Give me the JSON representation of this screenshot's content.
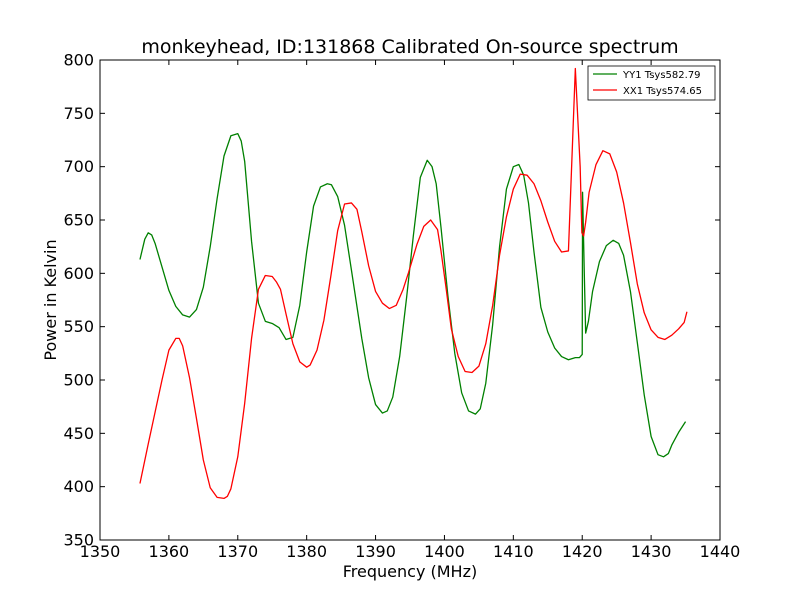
{
  "chart_data": {
    "type": "line",
    "title": "monkeyhead, ID:131868 Calibrated On-source spectrum",
    "xlabel": "Frequency (MHz)",
    "ylabel": "Power in Kelvin",
    "xlim": [
      1350,
      1440
    ],
    "ylim": [
      350,
      800
    ],
    "xticks": [
      1350,
      1360,
      1370,
      1380,
      1390,
      1400,
      1410,
      1420,
      1430,
      1440
    ],
    "yticks": [
      350,
      400,
      450,
      500,
      550,
      600,
      650,
      700,
      750,
      800
    ],
    "grid": false,
    "legend_position": "top-right",
    "series": [
      {
        "name": "YY1 Tsys582.79",
        "color": "#008000",
        "x": [
          1355.8,
          1356.5,
          1357.0,
          1357.5,
          1358.0,
          1359.0,
          1360.0,
          1361.0,
          1362.0,
          1363.0,
          1364.0,
          1365.0,
          1366.0,
          1367.0,
          1368.0,
          1369.0,
          1370.0,
          1370.5,
          1371.0,
          1372.0,
          1373.0,
          1374.0,
          1375.0,
          1376.0,
          1377.0,
          1378.0,
          1379.0,
          1380.0,
          1381.0,
          1382.0,
          1383.0,
          1383.6,
          1384.5,
          1385.5,
          1386.5,
          1388.0,
          1389.0,
          1390.0,
          1391.0,
          1391.7,
          1392.5,
          1393.5,
          1394.5,
          1395.5,
          1396.5,
          1397.5,
          1398.2,
          1398.8,
          1399.5,
          1400.5,
          1401.5,
          1402.5,
          1403.5,
          1404.5,
          1405.2,
          1406.0,
          1407.0,
          1408.0,
          1409.0,
          1410.0,
          1410.8,
          1411.5,
          1412.2,
          1413.0,
          1414.0,
          1415.0,
          1416.0,
          1417.0,
          1418.0,
          1419.0,
          1419.6,
          1420.0,
          1420.05,
          1420.3,
          1420.5,
          1420.9,
          1421.5,
          1422.5,
          1423.5,
          1424.5,
          1425.3,
          1426.0,
          1427.0,
          1428.0,
          1429.0,
          1430.0,
          1431.0,
          1431.8,
          1432.5,
          1433.0,
          1434.0,
          1435.0
        ],
        "values": [
          613,
          632,
          638,
          636,
          628,
          606,
          584,
          569,
          561,
          559,
          566,
          587,
          625,
          670,
          710,
          729,
          731,
          724,
          705,
          630,
          572,
          555,
          553,
          549,
          538,
          540,
          570,
          620,
          663,
          681,
          684,
          683,
          672,
          645,
          603,
          539,
          502,
          477,
          469,
          471,
          484,
          522,
          577,
          636,
          690,
          706,
          700,
          684,
          643,
          579,
          525,
          488,
          471,
          468,
          473,
          497,
          552,
          625,
          679,
          700,
          702,
          692,
          666,
          620,
          568,
          545,
          530,
          522,
          519,
          521,
          521,
          524,
          676,
          600,
          544,
          555,
          583,
          611,
          626,
          631,
          628,
          617,
          583,
          535,
          486,
          447,
          430,
          428,
          431,
          439,
          451,
          461
        ]
      },
      {
        "name": "XX1 Tsys574.65",
        "color": "#ff0000",
        "x": [
          1355.8,
          1357.0,
          1358.0,
          1359.0,
          1360.0,
          1361.0,
          1361.5,
          1362.0,
          1363.0,
          1364.0,
          1365.0,
          1366.0,
          1367.0,
          1368.0,
          1368.5,
          1369.0,
          1370.0,
          1371.0,
          1372.0,
          1373.0,
          1374.0,
          1375.0,
          1375.6,
          1376.2,
          1377.0,
          1378.0,
          1379.0,
          1380.0,
          1380.5,
          1381.5,
          1382.5,
          1383.5,
          1384.5,
          1385.5,
          1386.5,
          1387.3,
          1388.0,
          1389.0,
          1390.0,
          1391.0,
          1392.0,
          1393.0,
          1394.0,
          1394.8,
          1396.0,
          1397.0,
          1398.0,
          1399.0,
          1399.5,
          1400.2,
          1401.0,
          1402.0,
          1403.0,
          1404.0,
          1405.0,
          1406.0,
          1407.0,
          1408.0,
          1409.0,
          1410.0,
          1411.0,
          1412.0,
          1413.0,
          1414.0,
          1415.0,
          1416.0,
          1417.0,
          1418.0,
          1419.0,
          1419.7,
          1419.95,
          1420.2,
          1420.5,
          1421.0,
          1422.0,
          1423.0,
          1424.0,
          1425.0,
          1426.0,
          1427.0,
          1428.0,
          1429.0,
          1430.0,
          1431.0,
          1432.0,
          1433.0,
          1434.0,
          1434.8,
          1435.2
        ],
        "values": [
          403,
          440,
          470,
          500,
          528,
          539,
          539,
          532,
          502,
          464,
          425,
          399,
          390,
          389,
          391,
          398,
          428,
          478,
          539,
          585,
          598,
          597,
          592,
          585,
          562,
          534,
          517,
          512,
          514,
          528,
          556,
          597,
          640,
          665,
          666,
          660,
          639,
          607,
          583,
          572,
          567,
          570,
          585,
          601,
          627,
          644,
          650,
          641,
          621,
          588,
          548,
          522,
          508,
          507,
          513,
          534,
          570,
          617,
          653,
          679,
          693,
          692,
          684,
          668,
          648,
          630,
          620,
          621,
          792,
          700,
          638,
          635,
          648,
          676,
          702,
          715,
          712,
          695,
          666,
          629,
          590,
          563,
          547,
          540,
          538,
          542,
          548,
          554,
          564
        ]
      }
    ]
  }
}
